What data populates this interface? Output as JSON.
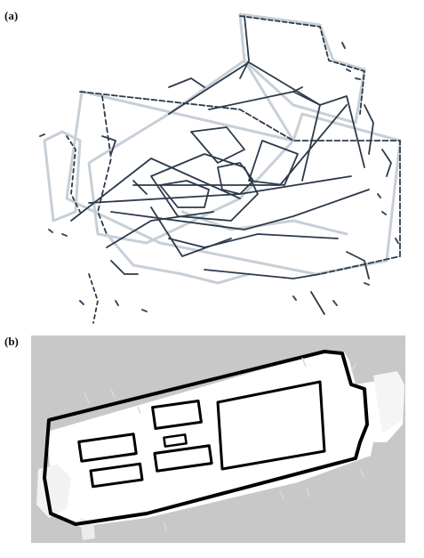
{
  "figure": {
    "panel_a_label": "(a)",
    "panel_b_label": "(b)"
  },
  "colors": {
    "background": "#ffffff",
    "raw_scan_dark": "#2c3a4a",
    "raw_scan_light": "#9aa8b8",
    "map_unknown": "#c8c8c8",
    "map_free": "#ffffff",
    "map_occupied": "#000000"
  }
}
